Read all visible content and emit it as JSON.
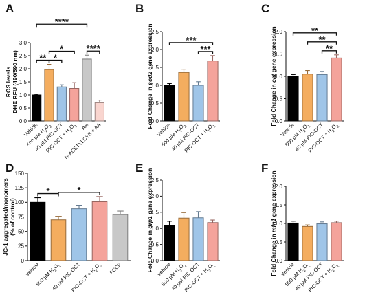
{
  "chart_data": [
    {
      "panel": "A",
      "type": "bar",
      "ylabel": [
        "ROS levels",
        "DHE RFU (490/590 nm)"
      ],
      "ylim": [
        0,
        3.0
      ],
      "yticks": [
        "0.0",
        "0.5",
        "1.0",
        "1.5",
        "2.0",
        "2.5",
        "3.0"
      ],
      "categories": [
        "Vehicle",
        "500 µM H₂O₂",
        "40 µM PIC-OCT",
        "PIC-OCT + H₂O₂",
        "AA",
        "N-ACETYLCYS + AA"
      ],
      "values": [
        1.0,
        1.97,
        1.31,
        1.25,
        2.37,
        0.7
      ],
      "errors": [
        0.03,
        0.2,
        0.08,
        0.22,
        0.15,
        0.1
      ],
      "colors": [
        "#000000",
        "#f4ad5f",
        "#9fc5e8",
        "#f4a39b",
        "#c8c8c8",
        "#f9d5cf"
      ],
      "significance": [
        {
          "from": 0,
          "to": 4,
          "label": "****"
        },
        {
          "from": 1,
          "to": 3,
          "label": "*"
        },
        {
          "from": 0,
          "to": 1,
          "label": "**"
        },
        {
          "from": 1,
          "to": 2,
          "label": "*"
        },
        {
          "from": 4,
          "to": 5,
          "label": "****"
        }
      ]
    },
    {
      "panel": "B",
      "type": "bar",
      "ylabel_pre": "Fold Change in ",
      "ylabel_gene": "sod2",
      "ylabel_post": " gene expression",
      "ylim": [
        0,
        2.5
      ],
      "yticks": [
        "0.0",
        "0.5",
        "1.0",
        "1.5",
        "2.0",
        "2.5"
      ],
      "categories": [
        "Vehicle",
        "500 µM H₂O₂",
        "40 µM PIC-OCT",
        "PIC-OCT + H₂O₂"
      ],
      "values": [
        1.0,
        1.36,
        1.0,
        1.68
      ],
      "errors": [
        0.05,
        0.09,
        0.1,
        0.15
      ],
      "colors": [
        "#000000",
        "#f4ad5f",
        "#9fc5e8",
        "#f4a39b"
      ],
      "significance": [
        {
          "from": 0,
          "to": 3,
          "label": "***"
        },
        {
          "from": 2,
          "to": 3,
          "label": "***"
        }
      ]
    },
    {
      "panel": "C",
      "type": "bar",
      "ylabel_pre": "Fold Change in ",
      "ylabel_gene": "cat",
      "ylabel_post": " gene expression",
      "ylim": [
        0,
        2.0
      ],
      "yticks": [
        "0.0",
        "0.5",
        "1.0",
        "1.5",
        "2.0"
      ],
      "categories": [
        "Vehicle",
        "500 µM H₂O₂",
        "40 µM PIC-OCT",
        "PIC-OCT + H₂O₂"
      ],
      "values": [
        1.0,
        1.05,
        1.04,
        1.41
      ],
      "errors": [
        0.04,
        0.08,
        0.07,
        0.07
      ],
      "colors": [
        "#000000",
        "#f4ad5f",
        "#9fc5e8",
        "#f4a39b"
      ],
      "significance": [
        {
          "from": 0,
          "to": 3,
          "label": "**"
        },
        {
          "from": 1,
          "to": 3,
          "label": "**"
        },
        {
          "from": 2,
          "to": 3,
          "label": "**"
        }
      ]
    },
    {
      "panel": "D",
      "type": "bar",
      "ylabel": [
        "JC-1 aggregated/monomers",
        "(% of control)"
      ],
      "ylim": [
        0,
        150
      ],
      "yticks": [
        "0",
        "25",
        "50",
        "75",
        "100",
        "125",
        "150"
      ],
      "categories": [
        "Vehicle",
        "500 µM H₂O₂",
        "40 µM PIC-OCT",
        "PIC-OCT + H₂O₂",
        "FCCP"
      ],
      "values": [
        100,
        70,
        89,
        101,
        79
      ],
      "errors": [
        8,
        6,
        6,
        9,
        6
      ],
      "colors": [
        "#000000",
        "#f4ad5f",
        "#9fc5e8",
        "#f4a39b",
        "#c8c8c8"
      ],
      "significance": [
        {
          "from": 0,
          "to": 1,
          "label": "*"
        },
        {
          "from": 1,
          "to": 3,
          "label": "*"
        }
      ]
    },
    {
      "panel": "E",
      "type": "bar",
      "ylabel_pre": "Fold Change in ",
      "ylabel_gene": "drp1",
      "ylabel_post": " gene expression",
      "ylim": [
        0,
        2.5
      ],
      "yticks": [
        "0.0",
        "0.5",
        "1.0",
        "1.5",
        "2.0",
        "2.5"
      ],
      "categories": [
        "Vehicle",
        "500 µM H₂O₂",
        "40 µM PIC-OCT",
        "PIC-OCT + H₂O₂"
      ],
      "values": [
        1.08,
        1.32,
        1.33,
        1.18
      ],
      "errors": [
        0.14,
        0.17,
        0.19,
        0.08
      ],
      "colors": [
        "#000000",
        "#f4ad5f",
        "#9fc5e8",
        "#f4a39b"
      ],
      "significance": []
    },
    {
      "panel": "F",
      "type": "bar",
      "ylabel_pre": "Fold Change in ",
      "ylabel_gene": "mfn1",
      "ylabel_post": " gene expression",
      "ylim": [
        0,
        2.0
      ],
      "yticks": [
        "0.0",
        "0.5",
        "1.0",
        "1.5",
        "2.0"
      ],
      "categories": [
        "Vehicle",
        "500 µM H₂O₂",
        "40 µM PIC-OCT",
        "PIC-OCT + H₂O₂"
      ],
      "values": [
        1.01,
        0.92,
        0.99,
        1.02
      ],
      "errors": [
        0.05,
        0.04,
        0.05,
        0.04
      ],
      "colors": [
        "#000000",
        "#f4ad5f",
        "#9fc5e8",
        "#f4a39b"
      ],
      "significance": []
    }
  ]
}
